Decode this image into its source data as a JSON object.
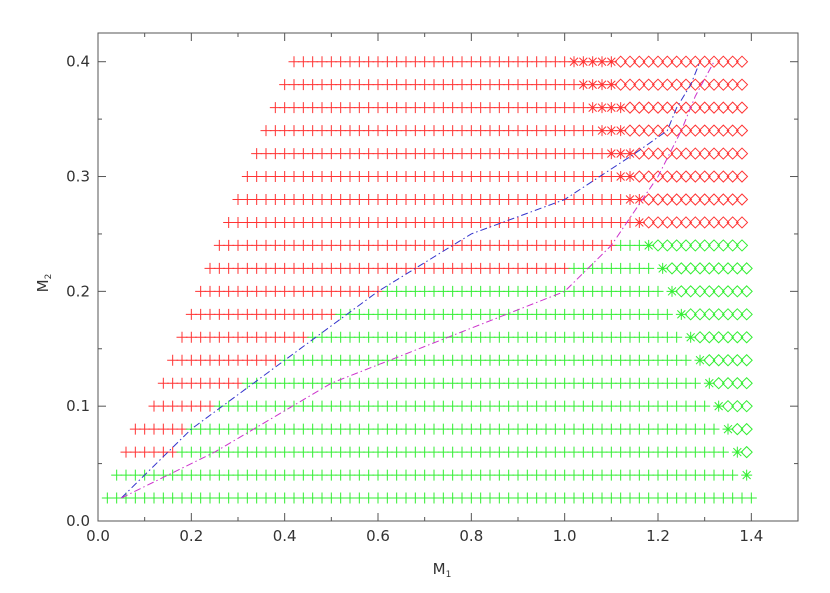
{
  "chart_data": {
    "type": "scatter",
    "title": "",
    "xlabel": "M",
    "xlabel_sub": "1",
    "ylabel": "M",
    "ylabel_sub": "2",
    "xlim": [
      0.0,
      1.5
    ],
    "ylim": [
      0.0,
      0.425
    ],
    "xticks": [
      "0.0",
      "0.2",
      "0.4",
      "0.6",
      "0.8",
      "1.0",
      "1.2",
      "1.4"
    ],
    "yticks": [
      "0.0",
      "0.1",
      "0.2",
      "0.3",
      "0.4"
    ],
    "grid": false,
    "legend": "none",
    "colors": {
      "red": "#ff3333",
      "green": "#33ee33",
      "blue": "#3333cc",
      "magenta": "#cc33cc",
      "axis": "#555555"
    },
    "markers": {
      "plus": "plus",
      "asterisk": "asterisk",
      "diamond": "diamond"
    },
    "rows": [
      {
        "m2": 0.02,
        "start": 0.02,
        "red_end": null,
        "green_end": 1.41,
        "ast": [],
        "ast_color": null,
        "dia_start": null,
        "dia_color": null
      },
      {
        "m2": 0.04,
        "start": 0.04,
        "red_end": null,
        "green_end": 1.37,
        "ast": [
          1.39
        ],
        "ast_color": "green",
        "dia_start": null,
        "dia_color": null
      },
      {
        "m2": 0.06,
        "start": 0.06,
        "red_end": 0.16,
        "green_end": 1.35,
        "ast": [
          1.37
        ],
        "ast_color": "green",
        "dia_start": 1.39,
        "dia_color": "green"
      },
      {
        "m2": 0.08,
        "start": 0.08,
        "red_end": 0.18,
        "green_end": 1.33,
        "ast": [
          1.35
        ],
        "ast_color": "green",
        "dia_start": 1.37,
        "dia_color": "green"
      },
      {
        "m2": 0.1,
        "start": 0.12,
        "red_end": 0.24,
        "green_end": 1.31,
        "ast": [
          1.33
        ],
        "ast_color": "green",
        "dia_start": 1.35,
        "dia_color": "green"
      },
      {
        "m2": 0.12,
        "start": 0.14,
        "red_end": 0.3,
        "green_end": 1.29,
        "ast": [
          1.31
        ],
        "ast_color": "green",
        "dia_start": 1.33,
        "dia_color": "green"
      },
      {
        "m2": 0.14,
        "start": 0.16,
        "red_end": 0.38,
        "green_end": 1.27,
        "ast": [
          1.29
        ],
        "ast_color": "green",
        "dia_start": 1.31,
        "dia_color": "green"
      },
      {
        "m2": 0.16,
        "start": 0.18,
        "red_end": 0.44,
        "green_end": 1.25,
        "ast": [
          1.27
        ],
        "ast_color": "green",
        "dia_start": 1.29,
        "dia_color": "green"
      },
      {
        "m2": 0.18,
        "start": 0.2,
        "red_end": 0.5,
        "green_end": 1.23,
        "ast": [
          1.25
        ],
        "ast_color": "green",
        "dia_start": 1.27,
        "dia_color": "green"
      },
      {
        "m2": 0.2,
        "start": 0.22,
        "red_end": 0.6,
        "green_end": 1.21,
        "ast": [
          1.23
        ],
        "ast_color": "green",
        "dia_start": 1.25,
        "dia_color": "green"
      },
      {
        "m2": 0.22,
        "start": 0.24,
        "red_end": 1.0,
        "green_end": 1.19,
        "ast": [
          1.21
        ],
        "ast_color": "green",
        "dia_start": 1.23,
        "dia_color": "green"
      },
      {
        "m2": 0.24,
        "start": 0.26,
        "red_end": 1.1,
        "green_end": 1.16,
        "ast": [
          1.18
        ],
        "ast_color": "green",
        "dia_start": 1.2,
        "dia_color": "green"
      },
      {
        "m2": 0.26,
        "start": 0.28,
        "red_end": 1.14,
        "green_end": null,
        "ast": [
          1.16
        ],
        "ast_color": "red",
        "dia_start": 1.18,
        "dia_color": "red"
      },
      {
        "m2": 0.28,
        "start": 0.3,
        "red_end": 1.12,
        "green_end": null,
        "ast": [
          1.14,
          1.16
        ],
        "ast_color": "red",
        "dia_start": 1.18,
        "dia_color": "red"
      },
      {
        "m2": 0.3,
        "start": 0.32,
        "red_end": 1.1,
        "green_end": null,
        "ast": [
          1.12,
          1.14
        ],
        "ast_color": "red",
        "dia_start": 1.16,
        "dia_color": "red"
      },
      {
        "m2": 0.32,
        "start": 0.34,
        "red_end": 1.08,
        "green_end": null,
        "ast": [
          1.1,
          1.12,
          1.14
        ],
        "ast_color": "red",
        "dia_start": 1.16,
        "dia_color": "red"
      },
      {
        "m2": 0.34,
        "start": 0.36,
        "red_end": 1.06,
        "green_end": null,
        "ast": [
          1.08,
          1.1,
          1.12
        ],
        "ast_color": "red",
        "dia_start": 1.14,
        "dia_color": "red"
      },
      {
        "m2": 0.36,
        "start": 0.38,
        "red_end": 1.04,
        "green_end": null,
        "ast": [
          1.06,
          1.08,
          1.1,
          1.12
        ],
        "ast_color": "red",
        "dia_start": 1.14,
        "dia_color": "red"
      },
      {
        "m2": 0.38,
        "start": 0.4,
        "red_end": 1.02,
        "green_end": null,
        "ast": [
          1.04,
          1.06,
          1.08,
          1.1
        ],
        "ast_color": "red",
        "dia_start": 1.12,
        "dia_color": "red"
      },
      {
        "m2": 0.4,
        "start": 0.42,
        "red_end": 1.0,
        "green_end": null,
        "ast": [
          1.02,
          1.04,
          1.06,
          1.08,
          1.1
        ],
        "ast_color": "red",
        "dia_start": 1.12,
        "dia_color": "red"
      }
    ],
    "x_step": 0.02,
    "x_max": 1.39,
    "lines": [
      {
        "color": "blue",
        "style": "dash-dot",
        "points": [
          [
            0.05,
            0.02
          ],
          [
            0.2,
            0.08
          ],
          [
            0.4,
            0.14
          ],
          [
            0.6,
            0.2
          ],
          [
            0.8,
            0.25
          ],
          [
            1.0,
            0.28
          ],
          [
            1.15,
            0.32
          ],
          [
            1.22,
            0.34
          ],
          [
            1.24,
            0.36
          ],
          [
            1.27,
            0.38
          ],
          [
            1.29,
            0.4
          ]
        ]
      },
      {
        "color": "magenta",
        "style": "dash-dot",
        "points": [
          [
            0.05,
            0.02
          ],
          [
            0.25,
            0.06
          ],
          [
            0.5,
            0.12
          ],
          [
            0.75,
            0.16
          ],
          [
            1.0,
            0.2
          ],
          [
            1.05,
            0.22
          ],
          [
            1.1,
            0.24
          ],
          [
            1.2,
            0.3
          ],
          [
            1.25,
            0.34
          ],
          [
            1.28,
            0.37
          ],
          [
            1.32,
            0.4
          ]
        ]
      }
    ]
  }
}
